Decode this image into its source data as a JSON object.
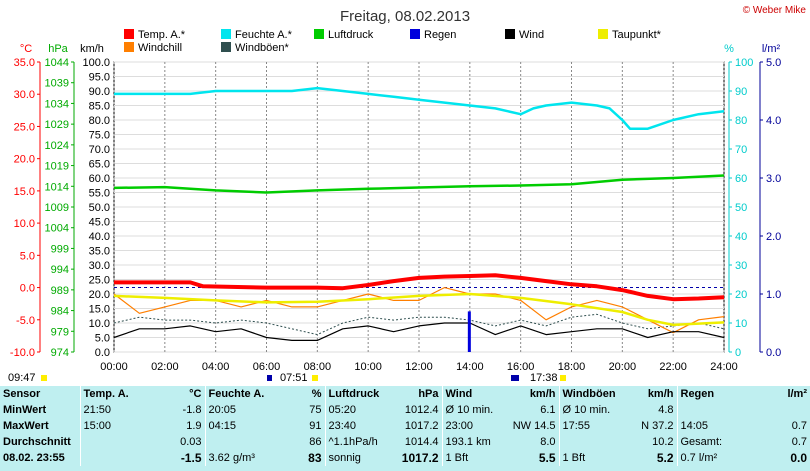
{
  "title": "Freitag, 08.02.2013",
  "credit": "© Weber Mike",
  "axis_labels": {
    "temp": "°C",
    "pressure": "hPa",
    "speed": "km/h",
    "humidity": "%",
    "rain": "l/m²"
  },
  "colors": {
    "temp": "#ff0000",
    "humidity": "#00e5ee",
    "pressure": "#00cc00",
    "rain": "#0000dd",
    "wind": "#000000",
    "dew": "#eeee00",
    "windchill": "#ff7f00",
    "gusts": "#2f4f4f",
    "axis_temp": "#ff0000",
    "axis_pressure": "#00aa00",
    "axis_humidity": "#00cccc",
    "axis_rain": "#000099"
  },
  "sun_markers": {
    "sunrise": "07:51",
    "sunset": "17:38",
    "left_time": "09:47"
  },
  "chart_data": {
    "type": "line",
    "x_unit": "hour of day",
    "xlim": [
      0,
      24
    ],
    "x_ticks": [
      "00:00",
      "02:00",
      "04:00",
      "06:00",
      "08:00",
      "10:00",
      "12:00",
      "14:00",
      "16:00",
      "18:00",
      "20:00",
      "22:00",
      "24:00"
    ],
    "axes": {
      "speed": {
        "label": "km/h",
        "range": [
          0,
          100
        ],
        "ticks": [
          "0.0",
          "5.0",
          "10.0",
          "15.0",
          "20.0",
          "25.0",
          "30.0",
          "35.0",
          "40.0",
          "45.0",
          "50.0",
          "55.0",
          "60.0",
          "65.0",
          "70.0",
          "75.0",
          "80.0",
          "85.0",
          "90.0",
          "95.0",
          "100.0"
        ]
      },
      "temp": {
        "label": "°C",
        "range": [
          -10,
          35
        ],
        "ticks": [
          "-10.0",
          "-5.0",
          "0.0",
          "5.0",
          "10.0",
          "15.0",
          "20.0",
          "25.0",
          "30.0",
          "35.0"
        ]
      },
      "pressure": {
        "label": "hPa",
        "range": [
          974,
          1044
        ],
        "ticks": [
          "974",
          "979",
          "984",
          "989",
          "994",
          "999",
          "1004",
          "1009",
          "1014",
          "1019",
          "1024",
          "1029",
          "1034",
          "1039",
          "1044"
        ]
      },
      "humidity": {
        "label": "%",
        "range": [
          0,
          100
        ],
        "ticks": [
          "0",
          "10",
          "20",
          "30",
          "40",
          "50",
          "60",
          "70",
          "80",
          "90",
          "100"
        ]
      },
      "rain": {
        "label": "l/m²",
        "range": [
          0,
          5
        ],
        "ticks": [
          "0.0",
          "1.0",
          "2.0",
          "3.0",
          "4.0",
          "5.0"
        ]
      }
    },
    "legend": [
      "Temp. A.*",
      "Feuchte A.*",
      "Luftdruck",
      "Regen",
      "Wind",
      "Taupunkt*",
      "Windchill",
      "Windböen*"
    ],
    "series": [
      {
        "name": "Temp. A.*",
        "key": "temp",
        "axis": "temp",
        "points": [
          [
            0,
            0.8
          ],
          [
            3,
            0.8
          ],
          [
            3.5,
            0.2
          ],
          [
            6,
            0.0
          ],
          [
            8,
            0.0
          ],
          [
            9,
            -0.1
          ],
          [
            10,
            0.4
          ],
          [
            11,
            1.0
          ],
          [
            12,
            1.5
          ],
          [
            13,
            1.7
          ],
          [
            14,
            1.8
          ],
          [
            15,
            1.9
          ],
          [
            16,
            1.5
          ],
          [
            17,
            1.0
          ],
          [
            18,
            0.5
          ],
          [
            19,
            0.2
          ],
          [
            20,
            -0.4
          ],
          [
            21,
            -1.3
          ],
          [
            22,
            -1.8
          ],
          [
            23,
            -1.7
          ],
          [
            24,
            -1.5
          ]
        ]
      },
      {
        "name": "Feuchte A.*",
        "key": "humidity",
        "axis": "humidity",
        "points": [
          [
            0,
            89
          ],
          [
            3,
            89
          ],
          [
            4,
            90
          ],
          [
            5,
            90
          ],
          [
            6,
            90
          ],
          [
            7,
            90
          ],
          [
            8,
            91
          ],
          [
            9,
            90
          ],
          [
            10,
            89
          ],
          [
            11,
            88
          ],
          [
            12,
            87
          ],
          [
            13,
            86
          ],
          [
            14,
            85
          ],
          [
            15,
            84
          ],
          [
            16,
            82
          ],
          [
            16.5,
            84
          ],
          [
            17,
            85
          ],
          [
            18,
            86
          ],
          [
            19,
            85
          ],
          [
            19.5,
            84
          ],
          [
            20,
            80
          ],
          [
            20.3,
            77
          ],
          [
            21,
            77
          ],
          [
            22,
            80
          ],
          [
            23,
            82
          ],
          [
            24,
            83
          ]
        ]
      },
      {
        "name": "Luftdruck",
        "key": "pressure",
        "axis": "pressure",
        "points": [
          [
            0,
            1013.6
          ],
          [
            2,
            1013.8
          ],
          [
            4,
            1013.0
          ],
          [
            6,
            1012.5
          ],
          [
            8,
            1013.0
          ],
          [
            10,
            1013.4
          ],
          [
            12,
            1013.7
          ],
          [
            14,
            1014.0
          ],
          [
            16,
            1014.2
          ],
          [
            18,
            1014.5
          ],
          [
            20,
            1015.6
          ],
          [
            22,
            1016.0
          ],
          [
            24,
            1016.6
          ]
        ]
      },
      {
        "name": "Taupunkt*",
        "key": "dew",
        "axis": "temp",
        "points": [
          [
            0,
            -1.3
          ],
          [
            2,
            -1.6
          ],
          [
            4,
            -2.0
          ],
          [
            6,
            -2.3
          ],
          [
            8,
            -2.2
          ],
          [
            10,
            -1.8
          ],
          [
            12,
            -1.3
          ],
          [
            14,
            -1.0
          ],
          [
            16,
            -1.6
          ],
          [
            18,
            -2.6
          ],
          [
            20,
            -3.8
          ],
          [
            21,
            -5.0
          ],
          [
            22,
            -5.8
          ],
          [
            24,
            -5.4
          ]
        ]
      },
      {
        "name": "Windchill",
        "key": "windchill",
        "axis": "temp",
        "points": [
          [
            0,
            -1
          ],
          [
            1,
            -4
          ],
          [
            2,
            -3
          ],
          [
            3,
            -2
          ],
          [
            4,
            -2
          ],
          [
            5,
            -3
          ],
          [
            6,
            -2
          ],
          [
            7,
            -3
          ],
          [
            8,
            -3
          ],
          [
            9,
            -2
          ],
          [
            10,
            -1
          ],
          [
            11,
            -2
          ],
          [
            12,
            -2
          ],
          [
            13,
            0
          ],
          [
            14,
            -1
          ],
          [
            15,
            -1
          ],
          [
            16,
            -2
          ],
          [
            17,
            -5
          ],
          [
            18,
            -3
          ],
          [
            19,
            -2
          ],
          [
            20,
            -3
          ],
          [
            21,
            -5
          ],
          [
            22,
            -7
          ],
          [
            23,
            -5
          ],
          [
            24,
            -4.5
          ]
        ]
      },
      {
        "name": "Wind",
        "key": "wind",
        "axis": "speed",
        "points": [
          [
            0,
            5
          ],
          [
            1,
            8
          ],
          [
            2,
            8
          ],
          [
            3,
            9
          ],
          [
            4,
            7
          ],
          [
            5,
            8
          ],
          [
            6,
            5
          ],
          [
            7,
            4
          ],
          [
            8,
            4
          ],
          [
            9,
            8
          ],
          [
            10,
            9
          ],
          [
            11,
            7
          ],
          [
            12,
            9
          ],
          [
            13,
            10
          ],
          [
            14,
            10
          ],
          [
            15,
            6
          ],
          [
            16,
            9
          ],
          [
            17,
            6
          ],
          [
            18,
            7
          ],
          [
            19,
            8
          ],
          [
            20,
            8
          ],
          [
            21,
            5
          ],
          [
            22,
            7
          ],
          [
            23,
            7
          ],
          [
            24,
            5
          ]
        ]
      },
      {
        "name": "Windböen*",
        "key": "gusts",
        "axis": "speed",
        "points": [
          [
            0,
            10
          ],
          [
            1,
            12
          ],
          [
            2,
            11
          ],
          [
            3,
            11
          ],
          [
            4,
            10
          ],
          [
            5,
            11
          ],
          [
            6,
            10
          ],
          [
            7,
            8
          ],
          [
            8,
            6
          ],
          [
            9,
            10
          ],
          [
            10,
            12
          ],
          [
            11,
            11
          ],
          [
            12,
            12
          ],
          [
            13,
            12
          ],
          [
            14,
            11
          ],
          [
            15,
            9
          ],
          [
            16,
            11
          ],
          [
            17,
            9
          ],
          [
            18,
            12
          ],
          [
            19,
            13
          ],
          [
            20,
            10
          ],
          [
            21,
            8
          ],
          [
            22,
            9
          ],
          [
            23,
            10
          ],
          [
            24,
            8
          ]
        ]
      },
      {
        "name": "Regen",
        "key": "rain",
        "axis": "rain",
        "bars": [
          [
            14.0,
            0.7
          ]
        ]
      }
    ]
  },
  "stats": {
    "headers": [
      "Sensor",
      "Temp. A.",
      "°C",
      "Feuchte A.",
      "%",
      "Luftdruck",
      "hPa",
      "Wind",
      "km/h",
      "Windböen",
      "km/h",
      "Regen",
      "l/m²"
    ],
    "rows": [
      [
        "MinWert",
        "21:50",
        "-1.8",
        "20:05",
        "75",
        "05:20",
        "1012.4",
        "Ø 10 min.",
        "6.1",
        "Ø 10 min.",
        "4.8",
        "",
        ""
      ],
      [
        "MaxWert",
        "15:00",
        "1.9",
        "04:15",
        "91",
        "23:40",
        "1017.2",
        "23:00",
        "NW 14.5",
        "17:55",
        "N 37.2",
        "14:05",
        "0.7"
      ],
      [
        "Durchschnitt",
        "",
        "0.03",
        "",
        "86",
        "^1.1hPa/h",
        "1014.4",
        "193.1 km",
        "8.0",
        "",
        "10.2",
        "Gesamt:",
        "0.7"
      ],
      [
        "08.02. 23:55",
        "",
        "-1.5",
        "3.62 g/m³",
        "83",
        "sonnig",
        "1017.2",
        "1 Bft",
        "5.5",
        "1 Bft",
        "5.2",
        "0.7 l/m²",
        "0.0"
      ]
    ]
  }
}
